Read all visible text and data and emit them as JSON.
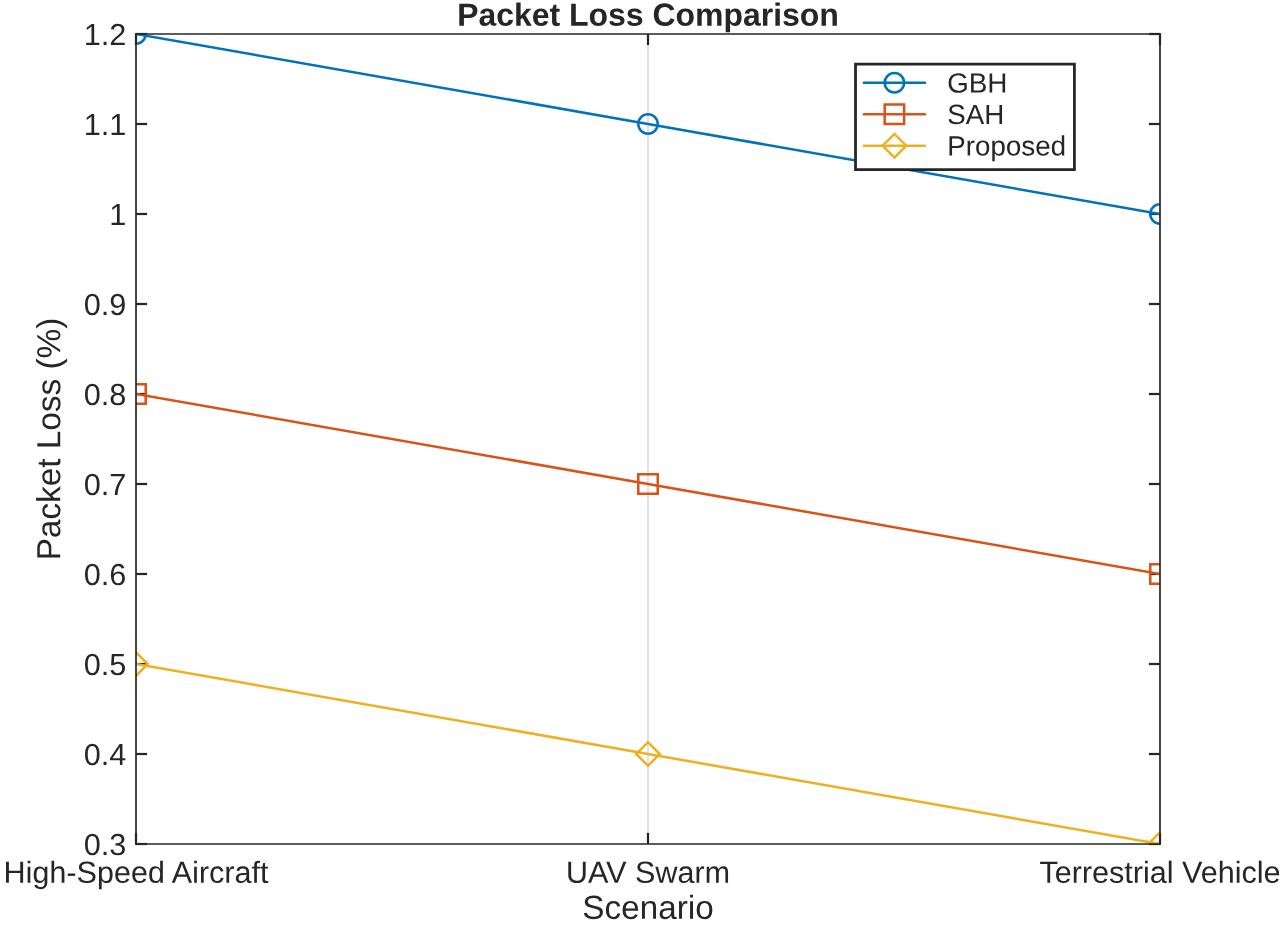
{
  "chart_data": {
    "type": "line",
    "title": "Packet Loss Comparison",
    "xlabel": "Scenario",
    "ylabel": "Packet Loss (%)",
    "categories": [
      "High-Speed Aircraft",
      "UAV Swarm",
      "Terrestrial Vehicle"
    ],
    "series": [
      {
        "name": "GBH",
        "color": "#0072bd",
        "marker": "circle",
        "values": [
          1.2,
          1.1,
          1.0
        ]
      },
      {
        "name": "SAH",
        "color": "#d95319",
        "marker": "square",
        "values": [
          0.8,
          0.7,
          0.6
        ]
      },
      {
        "name": "Proposed",
        "color": "#edb120",
        "marker": "diamond",
        "values": [
          0.5,
          0.4,
          0.3
        ]
      }
    ],
    "ylim": [
      0.3,
      1.2
    ],
    "yticks": [
      0.3,
      0.4,
      0.5,
      0.6,
      0.7,
      0.8,
      0.9,
      1,
      1.1,
      1.2
    ],
    "grid": "x",
    "legend": "top right",
    "line_style": "solid"
  }
}
